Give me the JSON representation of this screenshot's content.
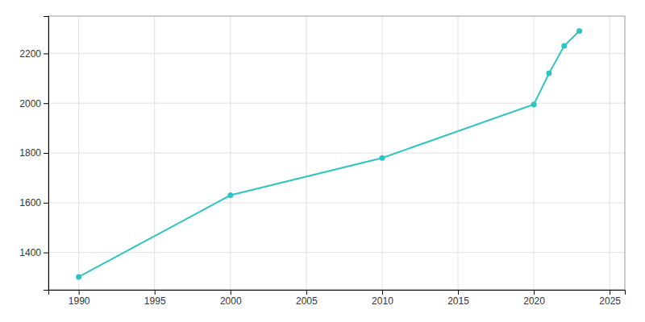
{
  "chart_data": {
    "type": "line",
    "x": [
      1990,
      2000,
      2010,
      2020,
      2021,
      2022,
      2023
    ],
    "values": [
      1302,
      1630,
      1780,
      1995,
      2120,
      2230,
      2290
    ],
    "color": "#2ec4c4",
    "marker": "circle",
    "xlim": [
      1988,
      2026
    ],
    "ylim": [
      1250,
      2350
    ],
    "xticks": [
      1990,
      1995,
      2000,
      2005,
      2010,
      2015,
      2020,
      2025
    ],
    "yticks": [
      1400,
      1600,
      1800,
      2000,
      2200
    ],
    "grid": true
  }
}
